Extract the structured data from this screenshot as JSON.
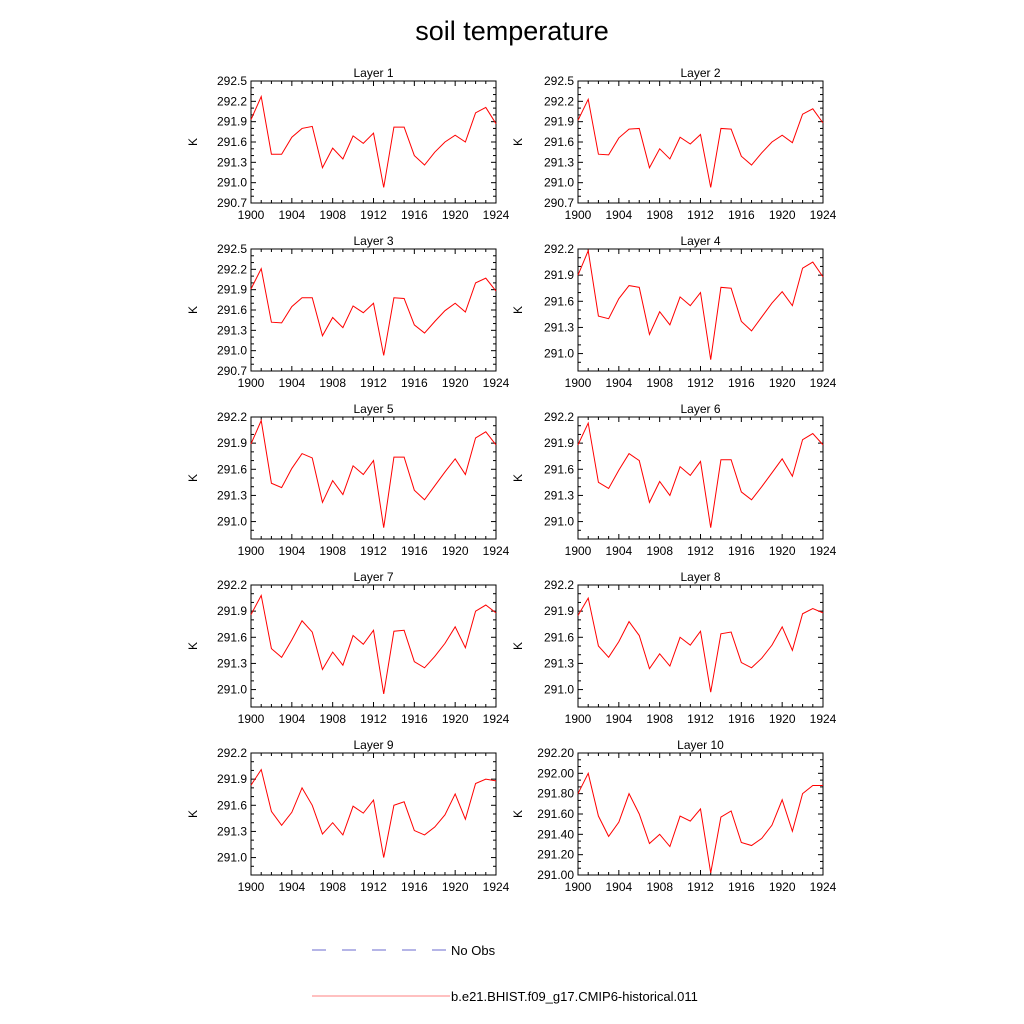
{
  "figure_title": "soil temperature",
  "legend": [
    {
      "label": "No Obs",
      "color": "#6b6bcf",
      "style": "dashed"
    },
    {
      "label": "b.e21.BHIST.f09_g17.CMIP6-historical.011",
      "color": "#ff8080",
      "style": "solid"
    }
  ],
  "chart_data": [
    {
      "type": "line",
      "title": "Layer 1",
      "ylabel": "K",
      "xlim": [
        1900,
        1924
      ],
      "ylim": [
        290.7,
        292.5
      ],
      "xticks": [
        "1900",
        "1904",
        "1908",
        "1912",
        "1916",
        "1920",
        "1924"
      ],
      "yticks": [
        "290.7",
        "291.0",
        "291.3",
        "291.6",
        "291.9",
        "292.2",
        "292.5"
      ],
      "x": [
        1900,
        1901,
        1902,
        1903,
        1904,
        1905,
        1906,
        1907,
        1908,
        1909,
        1910,
        1911,
        1912,
        1913,
        1914,
        1915,
        1916,
        1917,
        1918,
        1919,
        1920,
        1921,
        1922,
        1923,
        1924
      ],
      "series": [
        {
          "color": "#ff0000",
          "values": [
            291.93,
            292.27,
            291.42,
            291.42,
            291.67,
            291.8,
            291.83,
            291.22,
            291.51,
            291.35,
            291.69,
            291.58,
            291.73,
            290.93,
            291.82,
            291.82,
            291.4,
            291.26,
            291.45,
            291.6,
            291.7,
            291.6,
            292.03,
            292.11,
            291.87
          ]
        }
      ]
    },
    {
      "type": "line",
      "title": "Layer 2",
      "ylabel": "K",
      "xlim": [
        1900,
        1924
      ],
      "ylim": [
        290.7,
        292.5
      ],
      "xticks": [
        "1900",
        "1904",
        "1908",
        "1912",
        "1916",
        "1920",
        "1924"
      ],
      "yticks": [
        "290.7",
        "291.0",
        "291.3",
        "291.6",
        "291.9",
        "292.2",
        "292.5"
      ],
      "x": [
        1900,
        1901,
        1902,
        1903,
        1904,
        1905,
        1906,
        1907,
        1908,
        1909,
        1910,
        1911,
        1912,
        1913,
        1914,
        1915,
        1916,
        1917,
        1918,
        1919,
        1920,
        1921,
        1922,
        1923,
        1924
      ],
      "series": [
        {
          "color": "#ff0000",
          "values": [
            291.92,
            292.23,
            291.42,
            291.41,
            291.66,
            291.79,
            291.8,
            291.22,
            291.5,
            291.35,
            291.67,
            291.57,
            291.71,
            290.93,
            291.8,
            291.79,
            291.39,
            291.26,
            291.44,
            291.6,
            291.7,
            291.59,
            292.01,
            292.09,
            291.88
          ]
        }
      ]
    },
    {
      "type": "line",
      "title": "Layer 3",
      "ylabel": "K",
      "xlim": [
        1900,
        1924
      ],
      "ylim": [
        290.7,
        292.5
      ],
      "xticks": [
        "1900",
        "1904",
        "1908",
        "1912",
        "1916",
        "1920",
        "1924"
      ],
      "yticks": [
        "290.7",
        "291.0",
        "291.3",
        "291.6",
        "291.9",
        "292.2",
        "292.5"
      ],
      "x": [
        1900,
        1901,
        1902,
        1903,
        1904,
        1905,
        1906,
        1907,
        1908,
        1909,
        1910,
        1911,
        1912,
        1913,
        1914,
        1915,
        1916,
        1917,
        1918,
        1919,
        1920,
        1921,
        1922,
        1923,
        1924
      ],
      "series": [
        {
          "color": "#ff0000",
          "values": [
            291.91,
            292.21,
            291.42,
            291.41,
            291.65,
            291.78,
            291.78,
            291.22,
            291.49,
            291.34,
            291.66,
            291.56,
            291.7,
            290.93,
            291.78,
            291.77,
            291.38,
            291.26,
            291.43,
            291.59,
            291.7,
            291.57,
            292.0,
            292.07,
            291.88
          ]
        }
      ]
    },
    {
      "type": "line",
      "title": "Layer 4",
      "ylabel": "K",
      "xlim": [
        1900,
        1924
      ],
      "ylim": [
        290.8,
        292.2
      ],
      "xticks": [
        "1900",
        "1904",
        "1908",
        "1912",
        "1916",
        "1920",
        "1924"
      ],
      "yticks": [
        "291.0",
        "291.3",
        "291.6",
        "291.9",
        "292.2"
      ],
      "x": [
        1900,
        1901,
        1902,
        1903,
        1904,
        1905,
        1906,
        1907,
        1908,
        1909,
        1910,
        1911,
        1912,
        1913,
        1914,
        1915,
        1916,
        1917,
        1918,
        1919,
        1920,
        1921,
        1922,
        1923,
        1924
      ],
      "series": [
        {
          "color": "#ff0000",
          "values": [
            291.9,
            292.18,
            291.43,
            291.4,
            291.63,
            291.78,
            291.76,
            291.22,
            291.48,
            291.33,
            291.65,
            291.55,
            291.7,
            290.93,
            291.76,
            291.75,
            291.37,
            291.26,
            291.42,
            291.58,
            291.71,
            291.55,
            291.98,
            292.05,
            291.88
          ]
        }
      ]
    },
    {
      "type": "line",
      "title": "Layer 5",
      "ylabel": "K",
      "xlim": [
        1900,
        1924
      ],
      "ylim": [
        290.8,
        292.2
      ],
      "xticks": [
        "1900",
        "1904",
        "1908",
        "1912",
        "1916",
        "1920",
        "1924"
      ],
      "yticks": [
        "291.0",
        "291.3",
        "291.6",
        "291.9",
        "292.2"
      ],
      "x": [
        1900,
        1901,
        1902,
        1903,
        1904,
        1905,
        1906,
        1907,
        1908,
        1909,
        1910,
        1911,
        1912,
        1913,
        1914,
        1915,
        1916,
        1917,
        1918,
        1919,
        1920,
        1921,
        1922,
        1923,
        1924
      ],
      "series": [
        {
          "color": "#ff0000",
          "values": [
            291.89,
            292.16,
            291.44,
            291.39,
            291.61,
            291.78,
            291.73,
            291.22,
            291.47,
            291.31,
            291.64,
            291.54,
            291.7,
            290.93,
            291.74,
            291.74,
            291.36,
            291.25,
            291.41,
            291.57,
            291.72,
            291.54,
            291.96,
            292.03,
            291.88
          ]
        }
      ]
    },
    {
      "type": "line",
      "title": "Layer 6",
      "ylabel": "K",
      "xlim": [
        1900,
        1924
      ],
      "ylim": [
        290.8,
        292.2
      ],
      "xticks": [
        "1900",
        "1904",
        "1908",
        "1912",
        "1916",
        "1920",
        "1924"
      ],
      "yticks": [
        "291.0",
        "291.3",
        "291.6",
        "291.9",
        "292.2"
      ],
      "x": [
        1900,
        1901,
        1902,
        1903,
        1904,
        1905,
        1906,
        1907,
        1908,
        1909,
        1910,
        1911,
        1912,
        1913,
        1914,
        1915,
        1916,
        1917,
        1918,
        1919,
        1920,
        1921,
        1922,
        1923,
        1924
      ],
      "series": [
        {
          "color": "#ff0000",
          "values": [
            291.88,
            292.13,
            291.45,
            291.38,
            291.59,
            291.78,
            291.7,
            291.22,
            291.46,
            291.3,
            291.63,
            291.53,
            291.69,
            290.93,
            291.71,
            291.71,
            291.34,
            291.25,
            291.4,
            291.56,
            291.72,
            291.52,
            291.94,
            292.01,
            291.88
          ]
        }
      ]
    },
    {
      "type": "line",
      "title": "Layer 7",
      "ylabel": "K",
      "xlim": [
        1900,
        1924
      ],
      "ylim": [
        290.8,
        292.2
      ],
      "xticks": [
        "1900",
        "1904",
        "1908",
        "1912",
        "1916",
        "1920",
        "1924"
      ],
      "yticks": [
        "291.0",
        "291.3",
        "291.6",
        "291.9",
        "292.2"
      ],
      "x": [
        1900,
        1901,
        1902,
        1903,
        1904,
        1905,
        1906,
        1907,
        1908,
        1909,
        1910,
        1911,
        1912,
        1913,
        1914,
        1915,
        1916,
        1917,
        1918,
        1919,
        1920,
        1921,
        1922,
        1923,
        1924
      ],
      "series": [
        {
          "color": "#ff0000",
          "values": [
            291.86,
            292.08,
            291.47,
            291.37,
            291.57,
            291.79,
            291.66,
            291.23,
            291.43,
            291.28,
            291.62,
            291.52,
            291.68,
            290.95,
            291.67,
            291.68,
            291.32,
            291.25,
            291.38,
            291.53,
            291.72,
            291.48,
            291.9,
            291.97,
            291.88
          ]
        }
      ]
    },
    {
      "type": "line",
      "title": "Layer 8",
      "ylabel": "K",
      "xlim": [
        1900,
        1924
      ],
      "ylim": [
        290.8,
        292.2
      ],
      "xticks": [
        "1900",
        "1904",
        "1908",
        "1912",
        "1916",
        "1920",
        "1924"
      ],
      "yticks": [
        "291.0",
        "291.3",
        "291.6",
        "291.9",
        "292.2"
      ],
      "x": [
        1900,
        1901,
        1902,
        1903,
        1904,
        1905,
        1906,
        1907,
        1908,
        1909,
        1910,
        1911,
        1912,
        1913,
        1914,
        1915,
        1916,
        1917,
        1918,
        1919,
        1920,
        1921,
        1922,
        1923,
        1924
      ],
      "series": [
        {
          "color": "#ff0000",
          "values": [
            291.85,
            292.05,
            291.5,
            291.37,
            291.55,
            291.78,
            291.62,
            291.24,
            291.41,
            291.27,
            291.6,
            291.51,
            291.67,
            290.97,
            291.64,
            291.66,
            291.31,
            291.25,
            291.36,
            291.51,
            291.72,
            291.45,
            291.87,
            291.93,
            291.88
          ]
        }
      ]
    },
    {
      "type": "line",
      "title": "Layer 9",
      "ylabel": "K",
      "xlim": [
        1900,
        1924
      ],
      "ylim": [
        290.8,
        292.2
      ],
      "xticks": [
        "1900",
        "1904",
        "1908",
        "1912",
        "1916",
        "1920",
        "1924"
      ],
      "yticks": [
        "291.0",
        "291.3",
        "291.6",
        "291.9",
        "292.2"
      ],
      "x": [
        1900,
        1901,
        1902,
        1903,
        1904,
        1905,
        1906,
        1907,
        1908,
        1909,
        1910,
        1911,
        1912,
        1913,
        1914,
        1915,
        1916,
        1917,
        1918,
        1919,
        1920,
        1921,
        1922,
        1923,
        1924
      ],
      "series": [
        {
          "color": "#ff0000",
          "values": [
            291.83,
            292.01,
            291.53,
            291.37,
            291.52,
            291.8,
            291.6,
            291.27,
            291.4,
            291.26,
            291.59,
            291.51,
            291.66,
            291.0,
            291.6,
            291.64,
            291.31,
            291.26,
            291.35,
            291.49,
            291.73,
            291.44,
            291.85,
            291.9,
            291.88
          ]
        }
      ]
    },
    {
      "type": "line",
      "title": "Layer 10",
      "ylabel": "K",
      "xlim": [
        1900,
        1924
      ],
      "ylim": [
        291.0,
        292.2
      ],
      "xticks": [
        "1900",
        "1904",
        "1908",
        "1912",
        "1916",
        "1920",
        "1924"
      ],
      "yticks": [
        "291.00",
        "291.20",
        "291.40",
        "291.60",
        "291.80",
        "292.00",
        "292.20"
      ],
      "x": [
        1900,
        1901,
        1902,
        1903,
        1904,
        1905,
        1906,
        1907,
        1908,
        1909,
        1910,
        1911,
        1912,
        1913,
        1914,
        1915,
        1916,
        1917,
        1918,
        1919,
        1920,
        1921,
        1922,
        1923,
        1924
      ],
      "series": [
        {
          "color": "#ff0000",
          "values": [
            291.8,
            292.0,
            291.58,
            291.38,
            291.52,
            291.8,
            291.6,
            291.31,
            291.4,
            291.28,
            291.58,
            291.53,
            291.65,
            291.02,
            291.57,
            291.63,
            291.32,
            291.29,
            291.36,
            291.49,
            291.74,
            291.43,
            291.8,
            291.88,
            291.88
          ]
        }
      ]
    }
  ]
}
